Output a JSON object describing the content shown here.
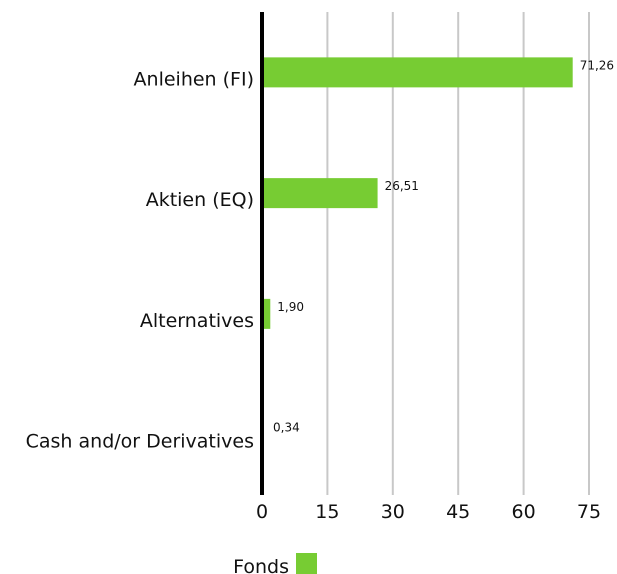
{
  "chart_data": {
    "type": "bar",
    "orientation": "horizontal",
    "categories": [
      "Anleihen (FI)",
      "Aktien (EQ)",
      "Alternatives",
      "Cash and/or Derivatives"
    ],
    "series": [
      {
        "name": "Fonds",
        "values": [
          71.26,
          26.51,
          1.9,
          0.34
        ],
        "value_labels": [
          "71,26",
          "26,51",
          "1,90",
          "0,34"
        ],
        "color": "#77cc33"
      }
    ],
    "xlim": [
      0,
      75
    ],
    "x_ticks": [
      0,
      15,
      30,
      45,
      60,
      75
    ],
    "x_tick_labels": [
      "0",
      "15",
      "30",
      "45",
      "60",
      "75"
    ],
    "grid": "vertical",
    "legend_position": "bottom-center",
    "axis_color": "#000000",
    "grid_color": "#c8c8c8"
  }
}
